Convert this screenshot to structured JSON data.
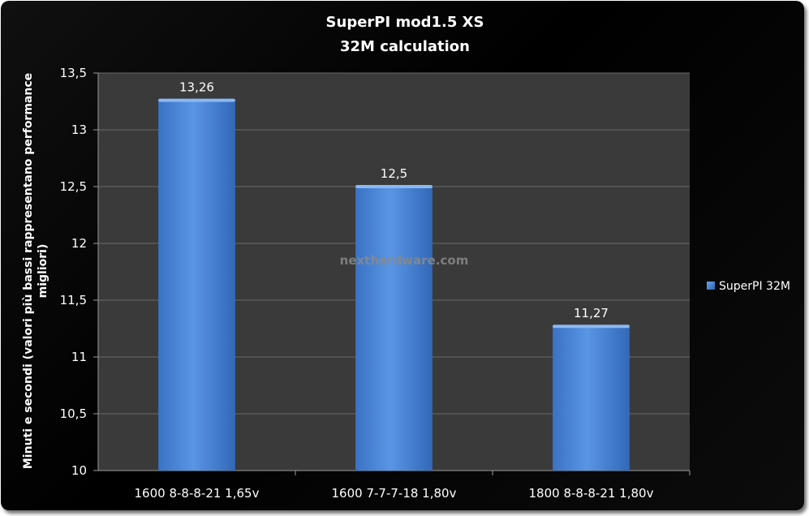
{
  "chart_data": {
    "type": "bar",
    "title": "SuperPI mod1.5 XS",
    "subtitle": "32M  calculation",
    "ylabel_lines": [
      "Minuti e secondi (valori più bassi rappresentano performance",
      "migliori)"
    ],
    "xlabel": "",
    "categories": [
      "1600 8-8-8-21 1,65v",
      "1600 7-7-7-18 1,80v",
      "1800 8-8-8-21 1,80v"
    ],
    "series": [
      {
        "name": "SuperPI 32M",
        "values": [
          13.26,
          12.5,
          11.27
        ],
        "labels": [
          "13,26",
          "12,5",
          "11,27"
        ]
      }
    ],
    "ylim": [
      10,
      13.5
    ],
    "yticks": [
      10,
      10.5,
      11,
      11.5,
      12,
      12.5,
      13,
      13.5
    ],
    "ytick_labels": [
      "10",
      "10,5",
      "11",
      "11,5",
      "12",
      "12,5",
      "13",
      "13,5"
    ],
    "grid": true,
    "legend_position": "right",
    "colors": {
      "bar": "#4a86d6",
      "bar_dark": "#2f62b0",
      "plot_bg": "#3a3a3a",
      "grid": "#6a6a6a"
    }
  },
  "watermark": "nexthardware.com"
}
